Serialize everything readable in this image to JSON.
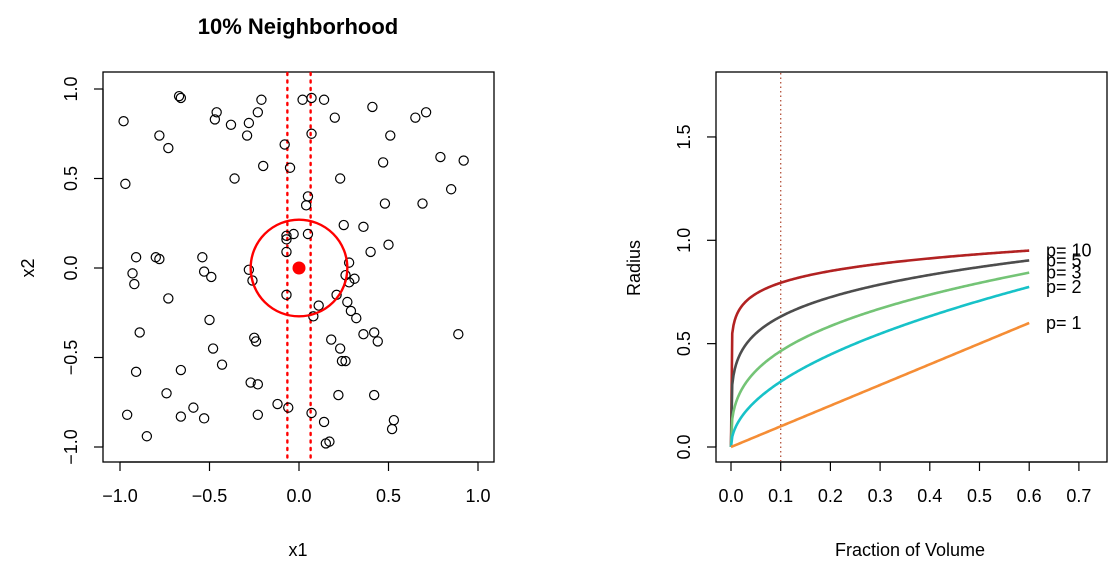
{
  "chart_data": [
    {
      "type": "scatter",
      "title": "10% Neighborhood",
      "xlabel": "x1",
      "ylabel": "x2",
      "xlim": [
        -1.0,
        1.0
      ],
      "ylim": [
        -1.0,
        1.0
      ],
      "xticks": [
        "-1.0",
        "-0.5",
        "0.0",
        "0.5",
        "1.0"
      ],
      "yticks": [
        "-1.0",
        "-0.5",
        "0.0",
        "0.5",
        "1.0"
      ],
      "points": [
        [
          -0.98,
          0.82
        ],
        [
          -0.97,
          0.47
        ],
        [
          -0.96,
          -0.82
        ],
        [
          -0.93,
          -0.03
        ],
        [
          -0.92,
          -0.09
        ],
        [
          -0.91,
          0.06
        ],
        [
          -0.91,
          -0.58
        ],
        [
          -0.89,
          -0.36
        ],
        [
          -0.85,
          -0.94
        ],
        [
          -0.8,
          0.06
        ],
        [
          -0.78,
          0.05
        ],
        [
          -0.78,
          0.74
        ],
        [
          -0.73,
          0.67
        ],
        [
          -0.73,
          -0.17
        ],
        [
          -0.74,
          -0.7
        ],
        [
          -0.67,
          0.96
        ],
        [
          -0.66,
          0.95
        ],
        [
          -0.66,
          -0.57
        ],
        [
          -0.66,
          -0.83
        ],
        [
          -0.59,
          -0.78
        ],
        [
          -0.54,
          0.06
        ],
        [
          -0.53,
          -0.02
        ],
        [
          -0.53,
          -0.84
        ],
        [
          -0.5,
          -0.29
        ],
        [
          -0.49,
          -0.05
        ],
        [
          -0.48,
          -0.45
        ],
        [
          -0.47,
          0.83
        ],
        [
          -0.46,
          0.87
        ],
        [
          -0.43,
          -0.54
        ],
        [
          -0.38,
          0.8
        ],
        [
          -0.36,
          0.5
        ],
        [
          -0.29,
          0.74
        ],
        [
          -0.28,
          0.81
        ],
        [
          -0.28,
          -0.01
        ],
        [
          -0.27,
          -0.64
        ],
        [
          -0.26,
          -0.07
        ],
        [
          -0.25,
          -0.39
        ],
        [
          -0.24,
          -0.41
        ],
        [
          -0.23,
          0.87
        ],
        [
          -0.23,
          -0.65
        ],
        [
          -0.23,
          -0.82
        ],
        [
          -0.21,
          0.94
        ],
        [
          -0.2,
          0.57
        ],
        [
          -0.12,
          -0.76
        ],
        [
          -0.08,
          0.69
        ],
        [
          -0.07,
          0.18
        ],
        [
          -0.07,
          0.16
        ],
        [
          -0.07,
          0.09
        ],
        [
          -0.07,
          -0.15
        ],
        [
          -0.05,
          0.56
        ],
        [
          -0.06,
          -0.78
        ],
        [
          -0.03,
          0.19
        ],
        [
          0.02,
          0.94
        ],
        [
          0.04,
          0.35
        ],
        [
          0.05,
          0.19
        ],
        [
          0.05,
          0.4
        ],
        [
          0.07,
          0.75
        ],
        [
          0.07,
          0.95
        ],
        [
          0.07,
          -0.81
        ],
        [
          0.08,
          -0.27
        ],
        [
          0.11,
          -0.21
        ],
        [
          0.14,
          0.94
        ],
        [
          0.14,
          -0.86
        ],
        [
          0.15,
          -0.98
        ],
        [
          0.17,
          -0.97
        ],
        [
          0.18,
          -0.4
        ],
        [
          0.2,
          0.84
        ],
        [
          0.21,
          -0.15
        ],
        [
          0.22,
          -0.71
        ],
        [
          0.23,
          -0.45
        ],
        [
          0.23,
          0.5
        ],
        [
          0.24,
          -0.52
        ],
        [
          0.25,
          0.24
        ],
        [
          0.26,
          -0.04
        ],
        [
          0.26,
          -0.52
        ],
        [
          0.27,
          -0.19
        ],
        [
          0.28,
          0.03
        ],
        [
          0.28,
          -0.08
        ],
        [
          0.29,
          -0.24
        ],
        [
          0.31,
          -0.06
        ],
        [
          0.32,
          -0.28
        ],
        [
          0.36,
          0.23
        ],
        [
          0.36,
          -0.37
        ],
        [
          0.4,
          0.09
        ],
        [
          0.41,
          0.9
        ],
        [
          0.42,
          -0.36
        ],
        [
          0.42,
          -0.71
        ],
        [
          0.44,
          -0.41
        ],
        [
          0.47,
          0.59
        ],
        [
          0.48,
          0.36
        ],
        [
          0.5,
          0.13
        ],
        [
          0.51,
          0.74
        ],
        [
          0.52,
          -0.9
        ],
        [
          0.53,
          -0.85
        ],
        [
          0.65,
          0.84
        ],
        [
          0.69,
          0.36
        ],
        [
          0.71,
          0.87
        ],
        [
          0.79,
          0.62
        ],
        [
          0.85,
          0.44
        ],
        [
          0.89,
          -0.37
        ],
        [
          0.92,
          0.6
        ]
      ],
      "target": [
        0.0,
        0.0
      ],
      "circle_radius": 0.27,
      "vlines": [
        -0.065,
        0.065
      ],
      "colors": {
        "points": "#000000",
        "target": "#ff0000",
        "circle": "#ff0000",
        "vlines": "#ff0000"
      }
    },
    {
      "type": "line",
      "xlabel": "Fraction of Volume",
      "ylabel": "Radius",
      "xlim": [
        0.0,
        0.7
      ],
      "ylim": [
        0.0,
        1.8
      ],
      "xticks": [
        "0.0",
        "0.1",
        "0.2",
        "0.3",
        "0.4",
        "0.5",
        "0.6",
        "0.7"
      ],
      "yticks": [
        "0.0",
        "0.5",
        "1.0",
        "1.5"
      ],
      "x_range": [
        0.0,
        0.6
      ],
      "vline": 0.1,
      "vline_color": "#b5533c",
      "series": [
        {
          "name": "p= 10",
          "p": 10,
          "color": "#b22222"
        },
        {
          "name": "p= 5",
          "p": 5,
          "color": "#4d4d4d"
        },
        {
          "name": "p= 3",
          "p": 3,
          "color": "#74c476"
        },
        {
          "name": "p= 2",
          "p": 2,
          "color": "#17c2c8"
        },
        {
          "name": "p= 1",
          "p": 1,
          "color": "#f58d35"
        }
      ]
    }
  ]
}
